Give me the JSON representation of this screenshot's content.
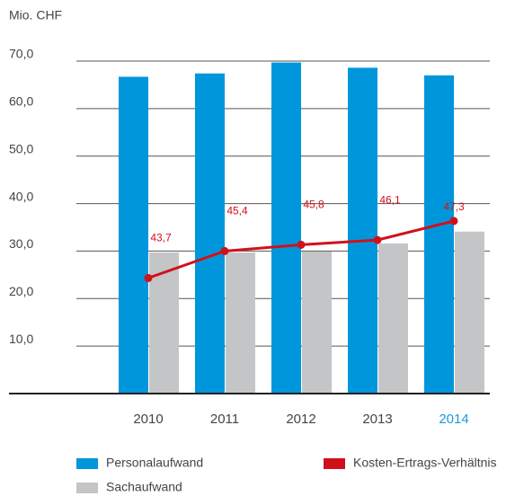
{
  "chart_data": {
    "type": "bar",
    "y_label": "Mio. CHF",
    "categories": [
      "2010",
      "2011",
      "2012",
      "2013",
      "2014"
    ],
    "highlight_category": "2014",
    "highlight_color": "#1a9ad6",
    "series": [
      {
        "name": "Personalaufwand",
        "color": "#0096db",
        "values": [
          66.7,
          67.4,
          69.7,
          68.6,
          67.0
        ]
      },
      {
        "name": "Sachaufwand",
        "color": "#c3c5c7",
        "values": [
          29.7,
          29.7,
          29.9,
          31.6,
          34.1
        ]
      },
      {
        "name": "Kosten-Ertrags-Verhältnis",
        "type": "line",
        "axis": "y2",
        "color": "#d0111b",
        "values": [
          43.7,
          45.4,
          45.8,
          46.1,
          47.3
        ],
        "value_labels": [
          "43,7",
          "45,4",
          "45,8",
          "46,1",
          "47,3"
        ]
      }
    ],
    "ylim": [
      0,
      70
    ],
    "yticks": [
      {
        "value": 10,
        "label": "10,0"
      },
      {
        "value": 20,
        "label": "20,0"
      },
      {
        "value": 30,
        "label": "30,0"
      },
      {
        "value": 40,
        "label": "40,0"
      },
      {
        "value": 50,
        "label": "50,0"
      },
      {
        "value": 60,
        "label": "60,0"
      },
      {
        "value": 70,
        "label": "70,0"
      }
    ],
    "y2lim": [
      36.4,
      57.4
    ],
    "grid": true
  }
}
